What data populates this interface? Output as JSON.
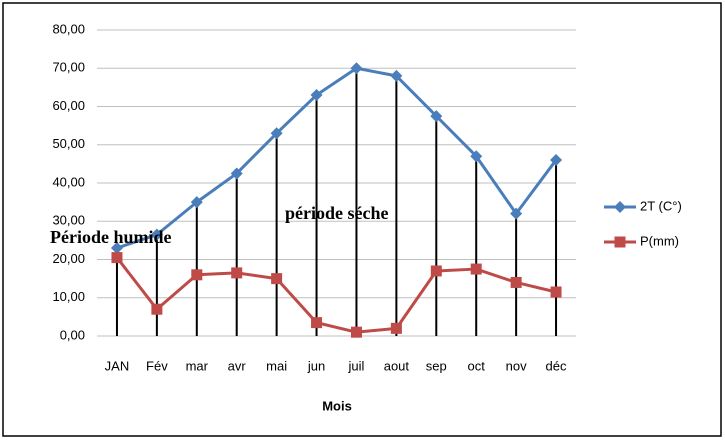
{
  "chart_data": {
    "type": "line",
    "categories": [
      "JAN",
      "Fév",
      "mar",
      "avr",
      "mai",
      "jun",
      "juil",
      "aout",
      "sep",
      "oct",
      "nov",
      "déc"
    ],
    "series": [
      {
        "name": "2T (C°)",
        "color": "#4a7ebb",
        "marker": "diamond",
        "values": [
          23,
          26.5,
          35,
          42.5,
          53,
          63,
          70,
          68,
          57.5,
          47,
          32,
          46
        ]
      },
      {
        "name": "P(mm)",
        "color": "#be4b48",
        "marker": "square",
        "values": [
          20.5,
          7,
          16,
          16.5,
          15,
          3.5,
          1,
          2,
          17,
          17.5,
          14,
          11.5
        ]
      }
    ],
    "ylim": [
      0,
      80
    ],
    "yticks": [
      {
        "value": 0,
        "label": "0,00"
      },
      {
        "value": 10,
        "label": "10,00"
      },
      {
        "value": 20,
        "label": "20,00"
      },
      {
        "value": 30,
        "label": "30,00"
      },
      {
        "value": 40,
        "label": "40,00"
      },
      {
        "value": 50,
        "label": "50,00"
      },
      {
        "value": 60,
        "label": "60,00"
      },
      {
        "value": 70,
        "label": "70,00"
      },
      {
        "value": 80,
        "label": "80,00"
      }
    ],
    "xlabel": "Mois",
    "grid": true,
    "legend": "right",
    "annotations": [
      "Période humide",
      "période séche"
    ]
  }
}
